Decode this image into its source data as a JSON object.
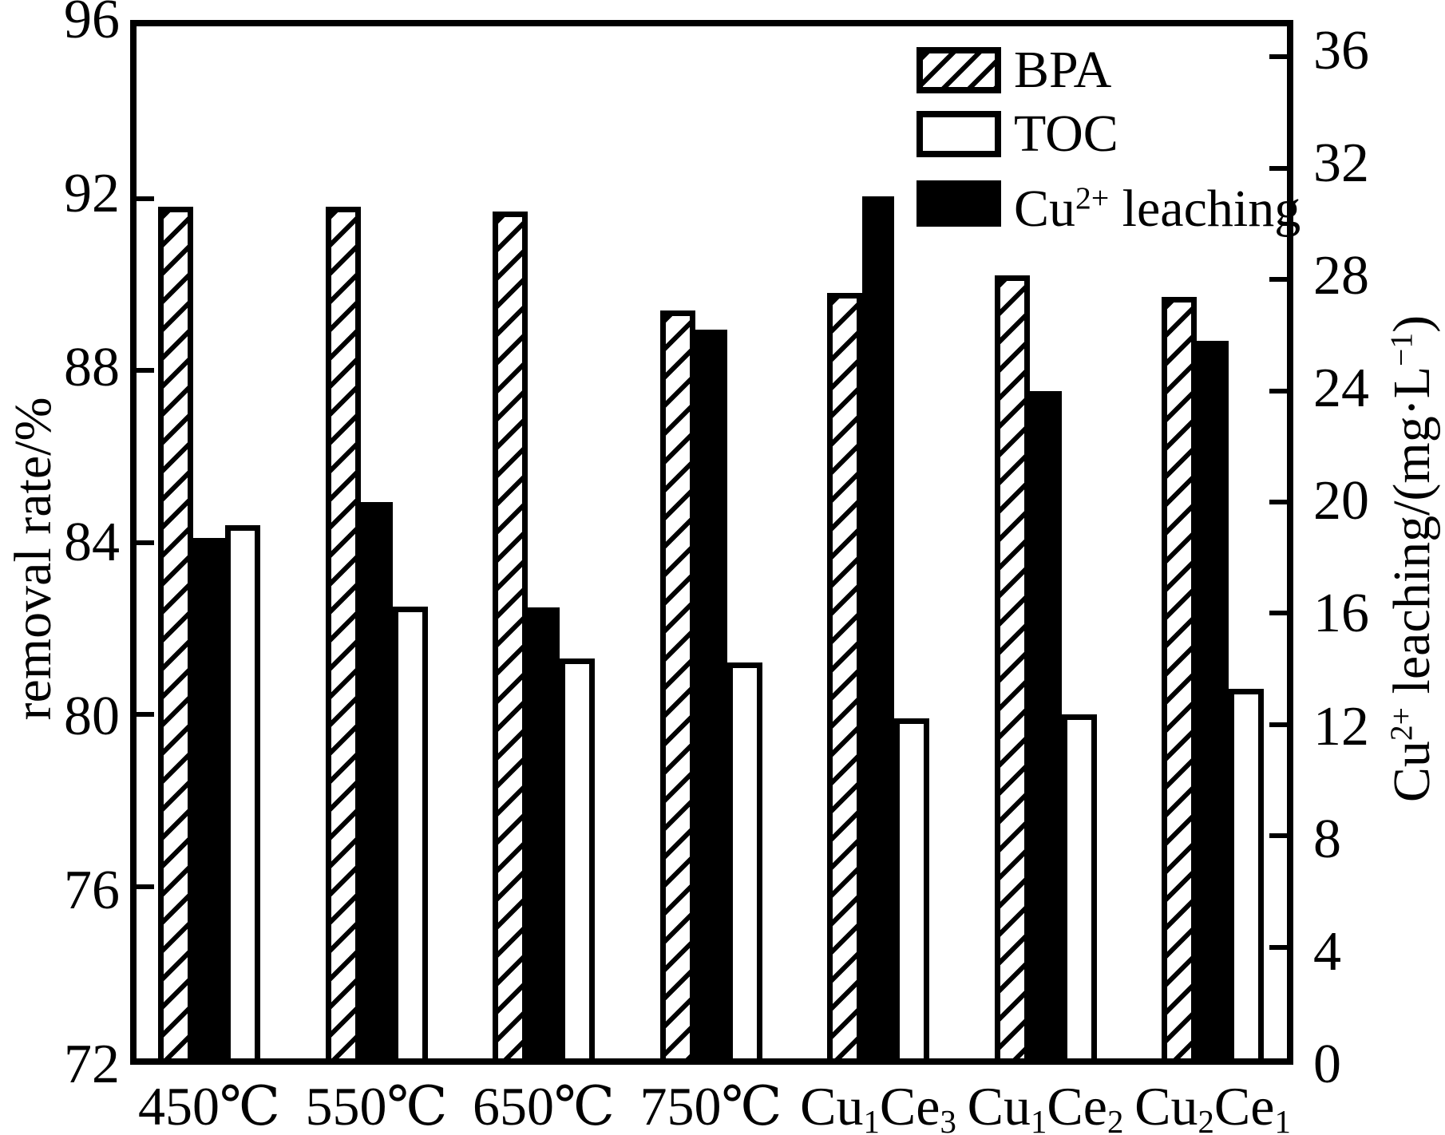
{
  "colors": {
    "ink": "#000000",
    "paper": "#ffffff"
  },
  "chart_data": {
    "type": "bar",
    "title": "",
    "grid": false,
    "categories_text": [
      "450℃",
      "550℃",
      "650℃",
      "750℃",
      "Cu1Ce3",
      "Cu1Ce2",
      "Cu2Ce1"
    ],
    "categories_rich": [
      [
        [
          "450℃"
        ]
      ],
      [
        [
          "550℃"
        ]
      ],
      [
        [
          "650℃"
        ]
      ],
      [
        [
          "750℃"
        ]
      ],
      [
        [
          "Cu"
        ],
        [
          "1",
          "sub"
        ],
        [
          "Ce"
        ],
        [
          "3",
          "sub"
        ]
      ],
      [
        [
          "Cu"
        ],
        [
          "1",
          "sub"
        ],
        [
          "Ce"
        ],
        [
          "2",
          "sub"
        ]
      ],
      [
        [
          "Cu"
        ],
        [
          "2",
          "sub"
        ],
        [
          "Ce"
        ],
        [
          "1",
          "sub"
        ]
      ]
    ],
    "series": [
      {
        "name": "BPA",
        "axis": "left",
        "style": "hatched",
        "values": [
          91.8,
          91.8,
          91.7,
          89.4,
          89.8,
          90.2,
          89.7
        ]
      },
      {
        "name": "TOC",
        "axis": "left",
        "style": "white",
        "values": [
          84.4,
          82.5,
          81.3,
          81.2,
          79.9,
          80.0,
          80.6
        ]
      },
      {
        "name": "Cu2+ leaching",
        "axis": "right",
        "style": "black",
        "values": [
          18.7,
          20.0,
          16.2,
          26.2,
          31.0,
          24.0,
          25.8
        ]
      }
    ],
    "axes": {
      "left": {
        "label": "removal rate/%",
        "label_rich": [
          [
            "removal rate/%"
          ]
        ],
        "ticks": [
          96,
          92,
          88,
          84,
          80,
          76,
          72
        ],
        "min": 72,
        "max": 96
      },
      "right": {
        "label": "Cu2+ leaching/(mg·L−1)",
        "label_rich": [
          [
            "Cu"
          ],
          [
            "2+",
            "sup"
          ],
          [
            " leaching/(mg·L"
          ],
          [
            "−1",
            "sup"
          ],
          [
            ")"
          ]
        ],
        "ticks": [
          36,
          32,
          28,
          24,
          20,
          16,
          12,
          8,
          4,
          0
        ],
        "min": 0,
        "max": 37.1
      }
    },
    "legend": {
      "position": "top-right",
      "items": [
        {
          "label_text": "BPA",
          "label_rich": [
            [
              "BPA"
            ]
          ],
          "style": "hatched"
        },
        {
          "label_text": "TOC",
          "label_rich": [
            [
              "TOC"
            ]
          ],
          "style": "white"
        },
        {
          "label_text": "Cu2+ leaching",
          "label_rich": [
            [
              "Cu"
            ],
            [
              "2+",
              "sup"
            ],
            [
              " leaching"
            ]
          ],
          "style": "black"
        }
      ]
    }
  }
}
